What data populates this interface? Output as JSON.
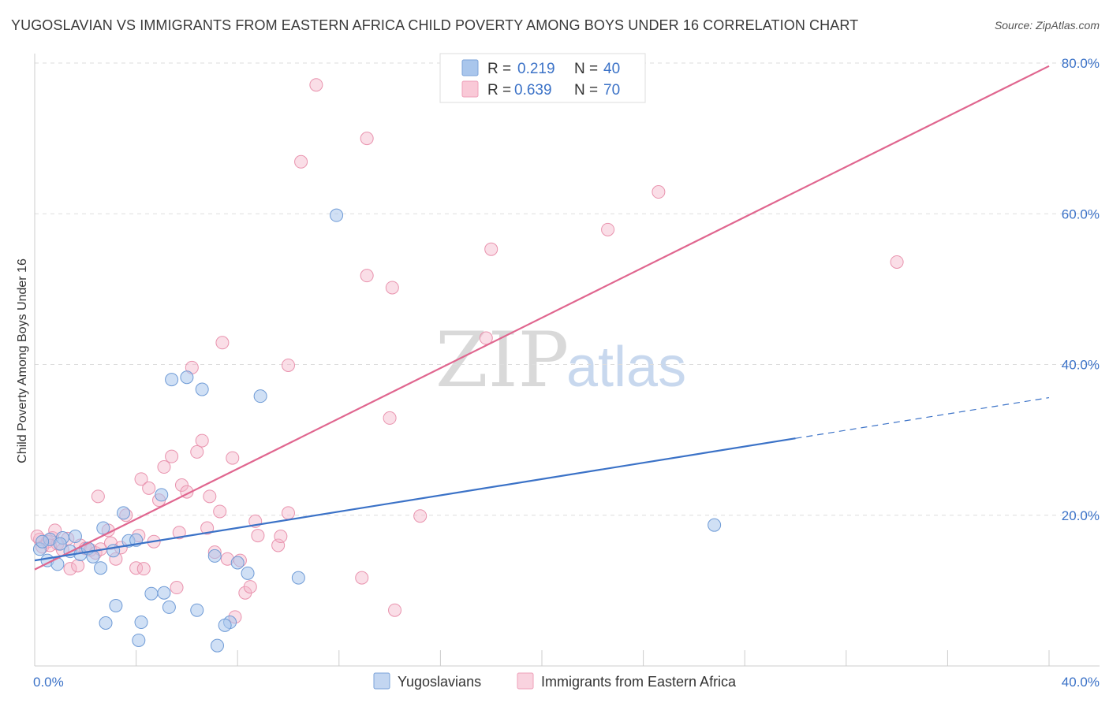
{
  "header": {
    "title": "YUGOSLAVIAN VS IMMIGRANTS FROM EASTERN AFRICA CHILD POVERTY AMONG BOYS UNDER 16 CORRELATION CHART",
    "source": "Source: ZipAtlas.com"
  },
  "watermark": {
    "zip": "ZIP",
    "atlas": "atlas"
  },
  "colors": {
    "blue": "#3b72c7",
    "blue_fill": "#a9c6ec",
    "pink": "#e0668f",
    "pink_fill": "#f4b6c9",
    "grid": "#dddddd"
  },
  "legend": {
    "rows": [
      {
        "r_label": "R =",
        "r_value": "0.219",
        "n_label": "N =",
        "n_value": "40"
      },
      {
        "r_label": "R =",
        "r_value": "0.639",
        "n_label": "N =",
        "n_value": "70"
      }
    ]
  },
  "chart_data": {
    "type": "scatter",
    "title": "YUGOSLAVIAN VS IMMIGRANTS FROM EASTERN AFRICA CHILD POVERTY AMONG BOYS UNDER 16 CORRELATION CHART",
    "xlabel": "",
    "ylabel": "Child Poverty Among Boys Under 16",
    "xlim": [
      0,
      40
    ],
    "ylim": [
      0,
      80
    ],
    "x_tick_labels": [
      {
        "value": 0,
        "label": "0.0%"
      },
      {
        "value": 40,
        "label": "40.0%"
      }
    ],
    "y_tick_labels": [
      {
        "value": 20,
        "label": "20.0%"
      },
      {
        "value": 40,
        "label": "40.0%"
      },
      {
        "value": 60,
        "label": "60.0%"
      },
      {
        "value": 80,
        "label": "80.0%"
      }
    ],
    "grid": true,
    "legend_position": "top-center",
    "series": [
      {
        "name": "Yugoslavians",
        "color": "#3b72c7",
        "r": 0.219,
        "n": 40,
        "trend": {
          "x0": 0,
          "y0": 14.0,
          "x1": 30,
          "y1": 30.2,
          "dash_to_x": 40,
          "dash_to_y": 35.6
        },
        "points": [
          [
            0.2,
            15.5
          ],
          [
            0.5,
            14.0
          ],
          [
            0.6,
            16.8
          ],
          [
            0.9,
            13.5
          ],
          [
            1.1,
            17.0
          ],
          [
            1.4,
            15.2
          ],
          [
            1.6,
            17.2
          ],
          [
            1.8,
            14.8
          ],
          [
            2.1,
            15.6
          ],
          [
            2.3,
            14.5
          ],
          [
            2.6,
            13.0
          ],
          [
            2.7,
            18.3
          ],
          [
            3.1,
            15.3
          ],
          [
            3.5,
            20.3
          ],
          [
            3.7,
            16.6
          ],
          [
            4.0,
            16.7
          ],
          [
            3.2,
            8.0
          ],
          [
            2.8,
            5.7
          ],
          [
            4.2,
            5.8
          ],
          [
            4.1,
            3.4
          ],
          [
            4.6,
            9.6
          ],
          [
            5.1,
            9.7
          ],
          [
            5.3,
            7.8
          ],
          [
            6.4,
            7.4
          ],
          [
            5.4,
            38.0
          ],
          [
            6.0,
            38.3
          ],
          [
            6.6,
            36.7
          ],
          [
            8.9,
            35.8
          ],
          [
            7.1,
            14.6
          ],
          [
            7.7,
            5.8
          ],
          [
            7.5,
            5.4
          ],
          [
            8.0,
            13.7
          ],
          [
            8.4,
            12.3
          ],
          [
            7.2,
            2.7
          ],
          [
            10.4,
            11.7
          ],
          [
            11.9,
            59.8
          ],
          [
            5.0,
            22.7
          ],
          [
            26.8,
            18.7
          ],
          [
            1.0,
            16.2
          ],
          [
            0.3,
            16.5
          ]
        ]
      },
      {
        "name": "Immigrants from Eastern Africa",
        "color": "#e0668f",
        "r": 0.639,
        "n": 70,
        "trend": {
          "x0": 0,
          "y0": 12.8,
          "x1": 40,
          "y1": 79.6
        },
        "points": [
          [
            0.2,
            16.8
          ],
          [
            0.3,
            15.8
          ],
          [
            0.5,
            16.5
          ],
          [
            0.7,
            17.0
          ],
          [
            0.8,
            18.0
          ],
          [
            0.9,
            16.2
          ],
          [
            1.1,
            15.4
          ],
          [
            1.3,
            16.9
          ],
          [
            1.4,
            12.9
          ],
          [
            1.7,
            13.3
          ],
          [
            1.8,
            16.0
          ],
          [
            2.0,
            15.6
          ],
          [
            2.2,
            15.4
          ],
          [
            2.4,
            15.0
          ],
          [
            2.5,
            22.5
          ],
          [
            2.6,
            15.5
          ],
          [
            2.9,
            18.0
          ],
          [
            3.0,
            16.3
          ],
          [
            3.2,
            14.2
          ],
          [
            3.4,
            15.7
          ],
          [
            3.6,
            20.0
          ],
          [
            4.0,
            13.0
          ],
          [
            4.1,
            17.3
          ],
          [
            4.3,
            12.9
          ],
          [
            4.2,
            24.8
          ],
          [
            4.5,
            23.6
          ],
          [
            4.7,
            16.5
          ],
          [
            4.9,
            22.0
          ],
          [
            5.1,
            26.4
          ],
          [
            5.4,
            27.8
          ],
          [
            5.6,
            10.4
          ],
          [
            5.7,
            17.7
          ],
          [
            5.8,
            24.0
          ],
          [
            6.0,
            23.1
          ],
          [
            6.2,
            39.6
          ],
          [
            6.4,
            28.4
          ],
          [
            6.6,
            29.9
          ],
          [
            6.8,
            18.3
          ],
          [
            6.9,
            22.5
          ],
          [
            7.1,
            15.1
          ],
          [
            7.3,
            20.5
          ],
          [
            7.4,
            42.9
          ],
          [
            7.6,
            14.2
          ],
          [
            7.8,
            27.6
          ],
          [
            7.9,
            6.5
          ],
          [
            8.1,
            14.0
          ],
          [
            8.3,
            9.7
          ],
          [
            8.5,
            10.5
          ],
          [
            8.7,
            19.2
          ],
          [
            8.8,
            17.3
          ],
          [
            9.6,
            16.0
          ],
          [
            9.7,
            17.2
          ],
          [
            10.0,
            20.3
          ],
          [
            10.0,
            39.9
          ],
          [
            10.5,
            66.9
          ],
          [
            11.1,
            77.1
          ],
          [
            12.9,
            11.7
          ],
          [
            13.1,
            51.8
          ],
          [
            13.1,
            70.0
          ],
          [
            14.0,
            32.9
          ],
          [
            14.1,
            50.2
          ],
          [
            14.2,
            7.4
          ],
          [
            15.2,
            19.9
          ],
          [
            17.8,
            43.5
          ],
          [
            18.0,
            55.3
          ],
          [
            22.6,
            57.9
          ],
          [
            24.6,
            62.9
          ],
          [
            34.0,
            53.6
          ],
          [
            0.1,
            17.2
          ],
          [
            0.6,
            16.0
          ]
        ]
      }
    ]
  },
  "bottom_legend": {
    "items": [
      {
        "label": "Yugoslavians"
      },
      {
        "label": "Immigrants from Eastern Africa"
      }
    ]
  }
}
